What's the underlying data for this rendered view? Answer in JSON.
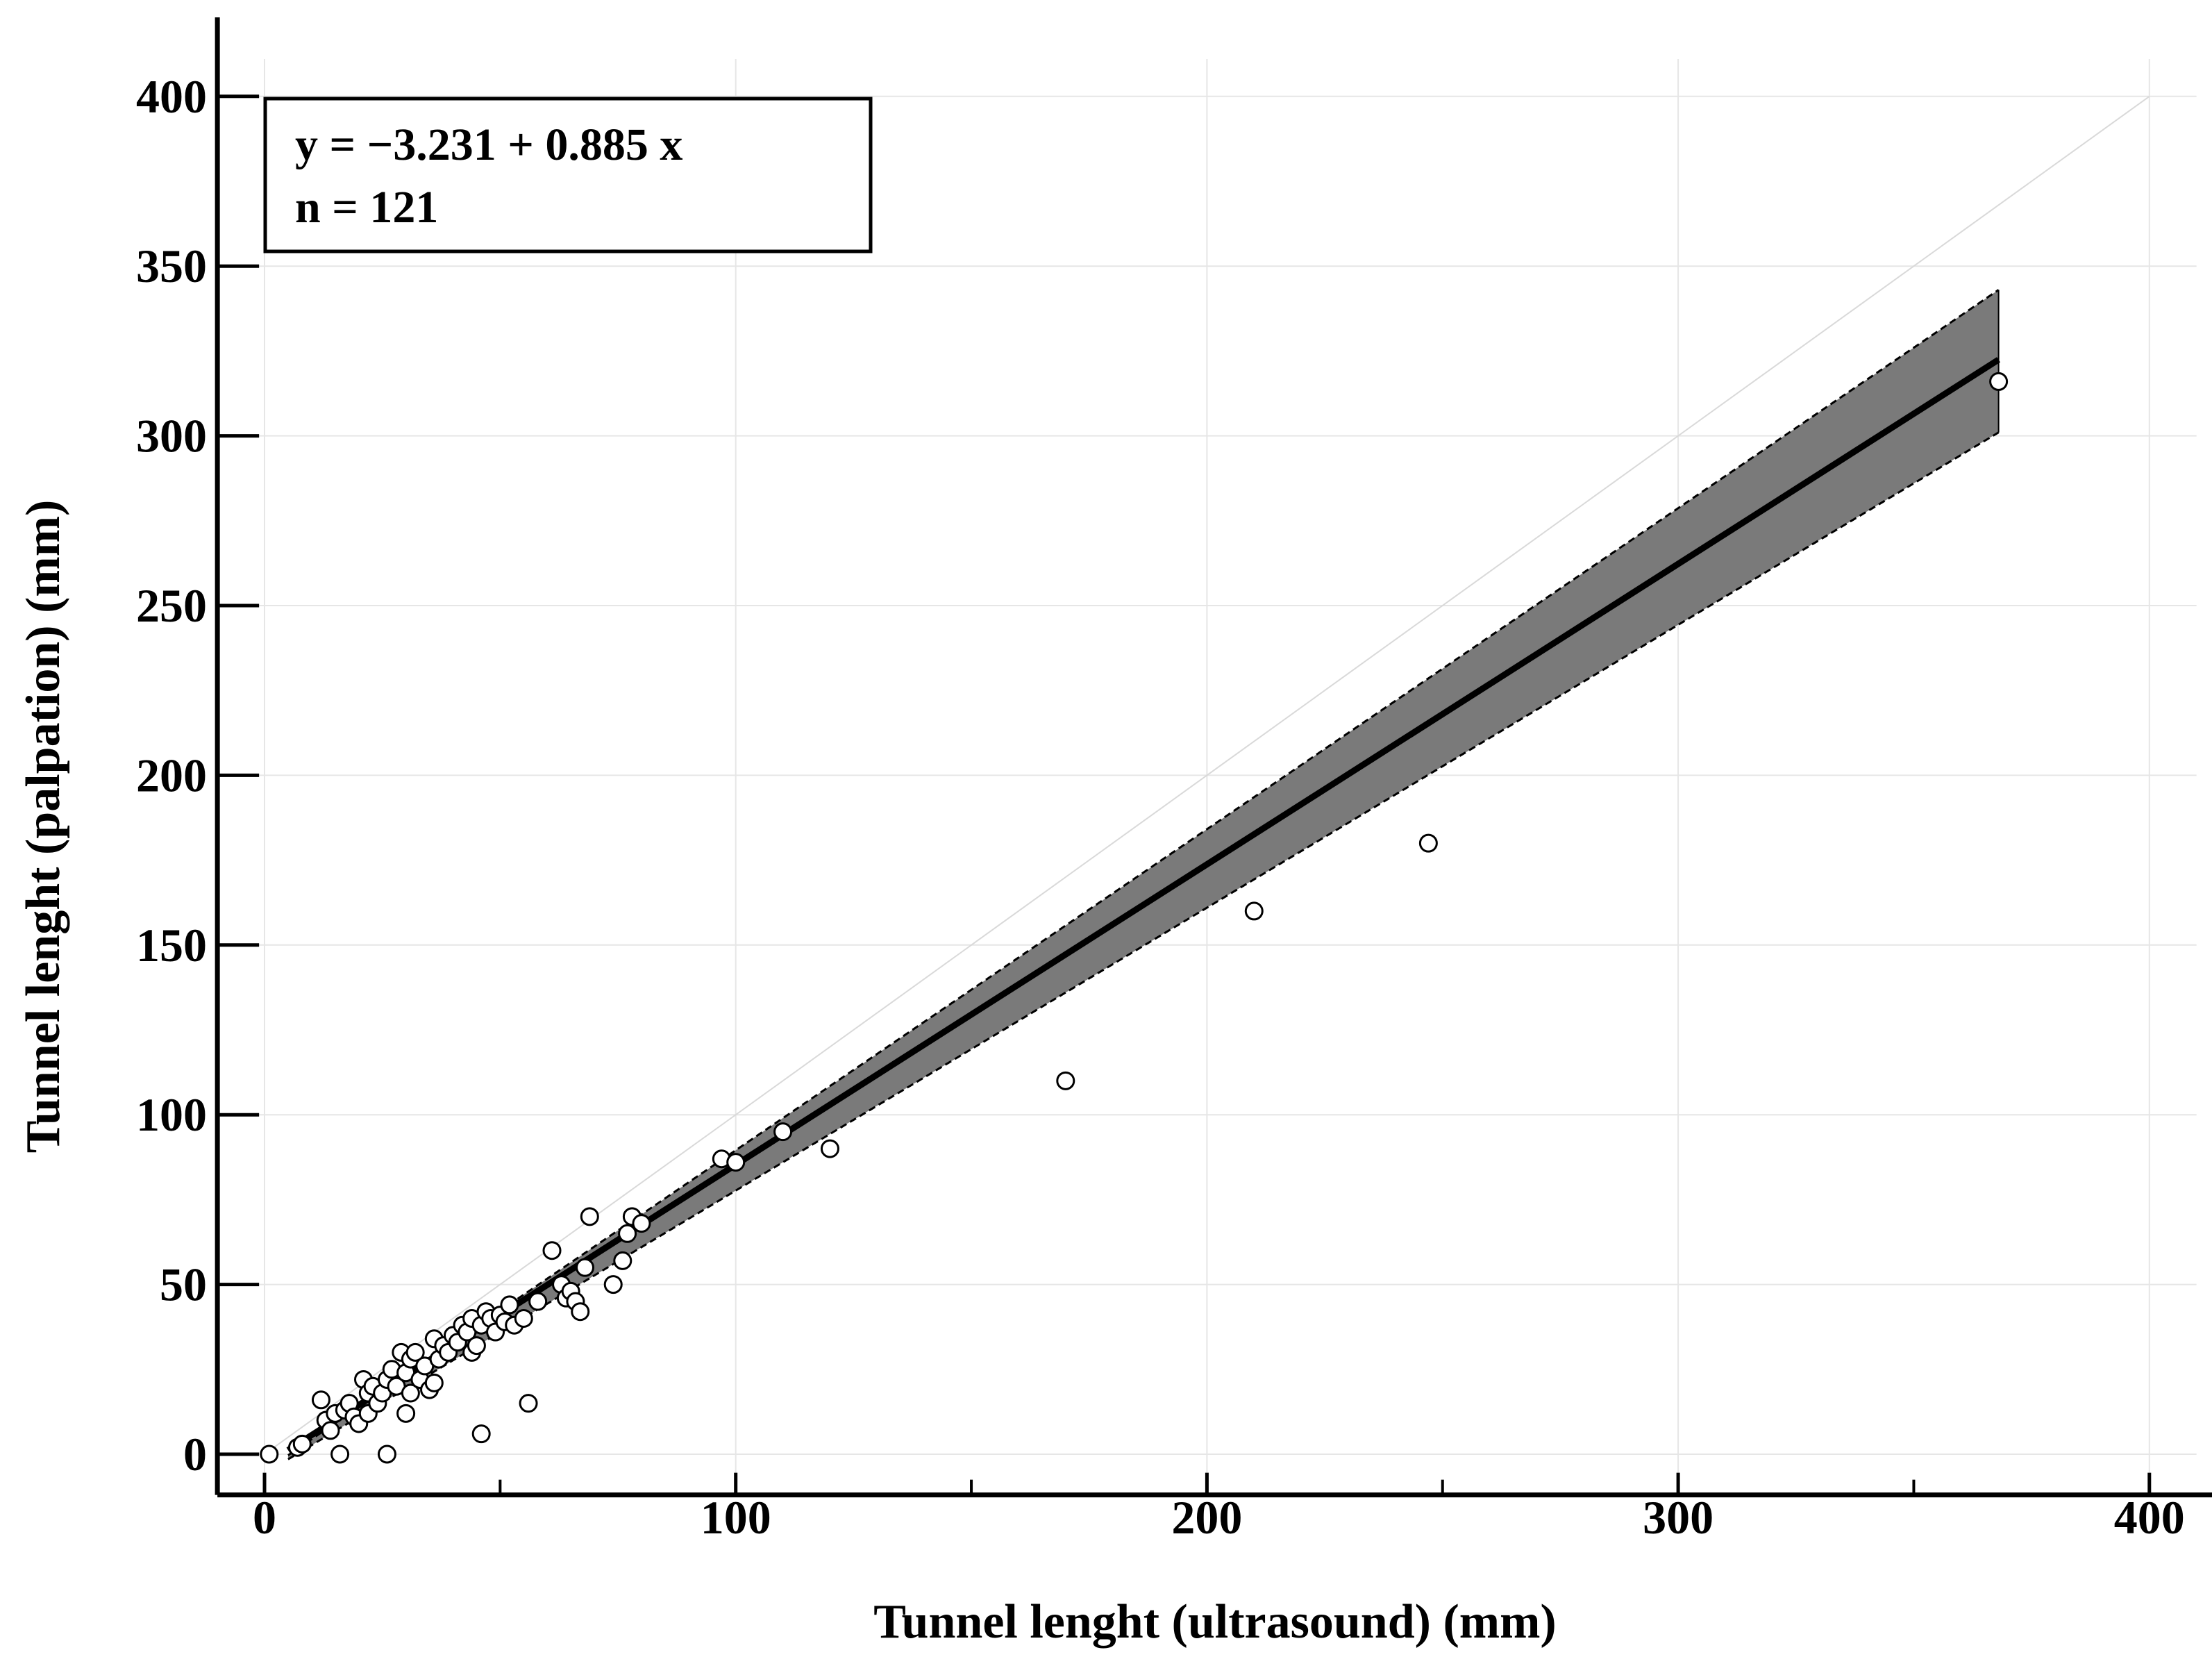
{
  "chart_data": {
    "type": "scatter",
    "title": "",
    "xlabel": "Tunnel lenght (ultrasound) (mm)",
    "ylabel": "Tunnel lenght (palpation) (mm)",
    "xlim": [
      -10,
      410
    ],
    "ylim": [
      -12,
      411
    ],
    "x_ticks": [
      0,
      100,
      200,
      300,
      400
    ],
    "y_ticks": [
      0,
      50,
      100,
      150,
      200,
      250,
      300,
      350,
      400
    ],
    "x_minor_ticks": [
      50,
      150,
      250,
      350
    ],
    "grid": true,
    "annotation": {
      "equation": "y = −3.231  +  0.885  x",
      "n": "n = 121"
    },
    "regression": {
      "intercept": -3.231,
      "slope": 0.885,
      "x_range": [
        5,
        368
      ]
    },
    "confidence_band": {
      "x": [
        5,
        368
      ],
      "lower": [
        -1.5,
        301
      ],
      "upper": [
        -0.3,
        343
      ]
    },
    "identity_line": {
      "x": [
        0,
        400
      ],
      "y": [
        0,
        400
      ]
    },
    "series": [
      {
        "points": [
          [
            1,
            0
          ],
          [
            7,
            2
          ],
          [
            8,
            3
          ],
          [
            12,
            16
          ],
          [
            13,
            10
          ],
          [
            14,
            7
          ],
          [
            15,
            12
          ],
          [
            16,
            0
          ],
          [
            17,
            13
          ],
          [
            18,
            15
          ],
          [
            19,
            11
          ],
          [
            20,
            9
          ],
          [
            21,
            22
          ],
          [
            22,
            18
          ],
          [
            22,
            12
          ],
          [
            23,
            20
          ],
          [
            24,
            15
          ],
          [
            25,
            18
          ],
          [
            26,
            0
          ],
          [
            26,
            22
          ],
          [
            27,
            25
          ],
          [
            28,
            20
          ],
          [
            29,
            30
          ],
          [
            30,
            12
          ],
          [
            30,
            24
          ],
          [
            31,
            18
          ],
          [
            31,
            28
          ],
          [
            32,
            30
          ],
          [
            33,
            22
          ],
          [
            34,
            26
          ],
          [
            35,
            19
          ],
          [
            36,
            34
          ],
          [
            36,
            21
          ],
          [
            37,
            28
          ],
          [
            38,
            32
          ],
          [
            39,
            30
          ],
          [
            40,
            35
          ],
          [
            41,
            33
          ],
          [
            42,
            38
          ],
          [
            43,
            36
          ],
          [
            44,
            40
          ],
          [
            44,
            30
          ],
          [
            45,
            32
          ],
          [
            46,
            6
          ],
          [
            46,
            38
          ],
          [
            47,
            42
          ],
          [
            48,
            40
          ],
          [
            49,
            36
          ],
          [
            50,
            41
          ],
          [
            51,
            39
          ],
          [
            52,
            44
          ],
          [
            53,
            38
          ],
          [
            55,
            40
          ],
          [
            56,
            15
          ],
          [
            58,
            45
          ],
          [
            61,
            60
          ],
          [
            63,
            50
          ],
          [
            64,
            46
          ],
          [
            65,
            48
          ],
          [
            66,
            45
          ],
          [
            67,
            42
          ],
          [
            68,
            55
          ],
          [
            69,
            70
          ],
          [
            74,
            50
          ],
          [
            76,
            57
          ],
          [
            77,
            65
          ],
          [
            78,
            70
          ],
          [
            80,
            68
          ],
          [
            97,
            87
          ],
          [
            100,
            86
          ],
          [
            110,
            95
          ],
          [
            120,
            90
          ],
          [
            170,
            110
          ],
          [
            210,
            160
          ],
          [
            247,
            180
          ],
          [
            368,
            316
          ]
        ]
      }
    ],
    "colors": {
      "band": "#7a7a7a",
      "regression": "#000000",
      "marker_fill": "#ffffff",
      "marker_edge": "#000000",
      "grid": "#e6e6e6",
      "identity": "#d9d9d9"
    }
  }
}
